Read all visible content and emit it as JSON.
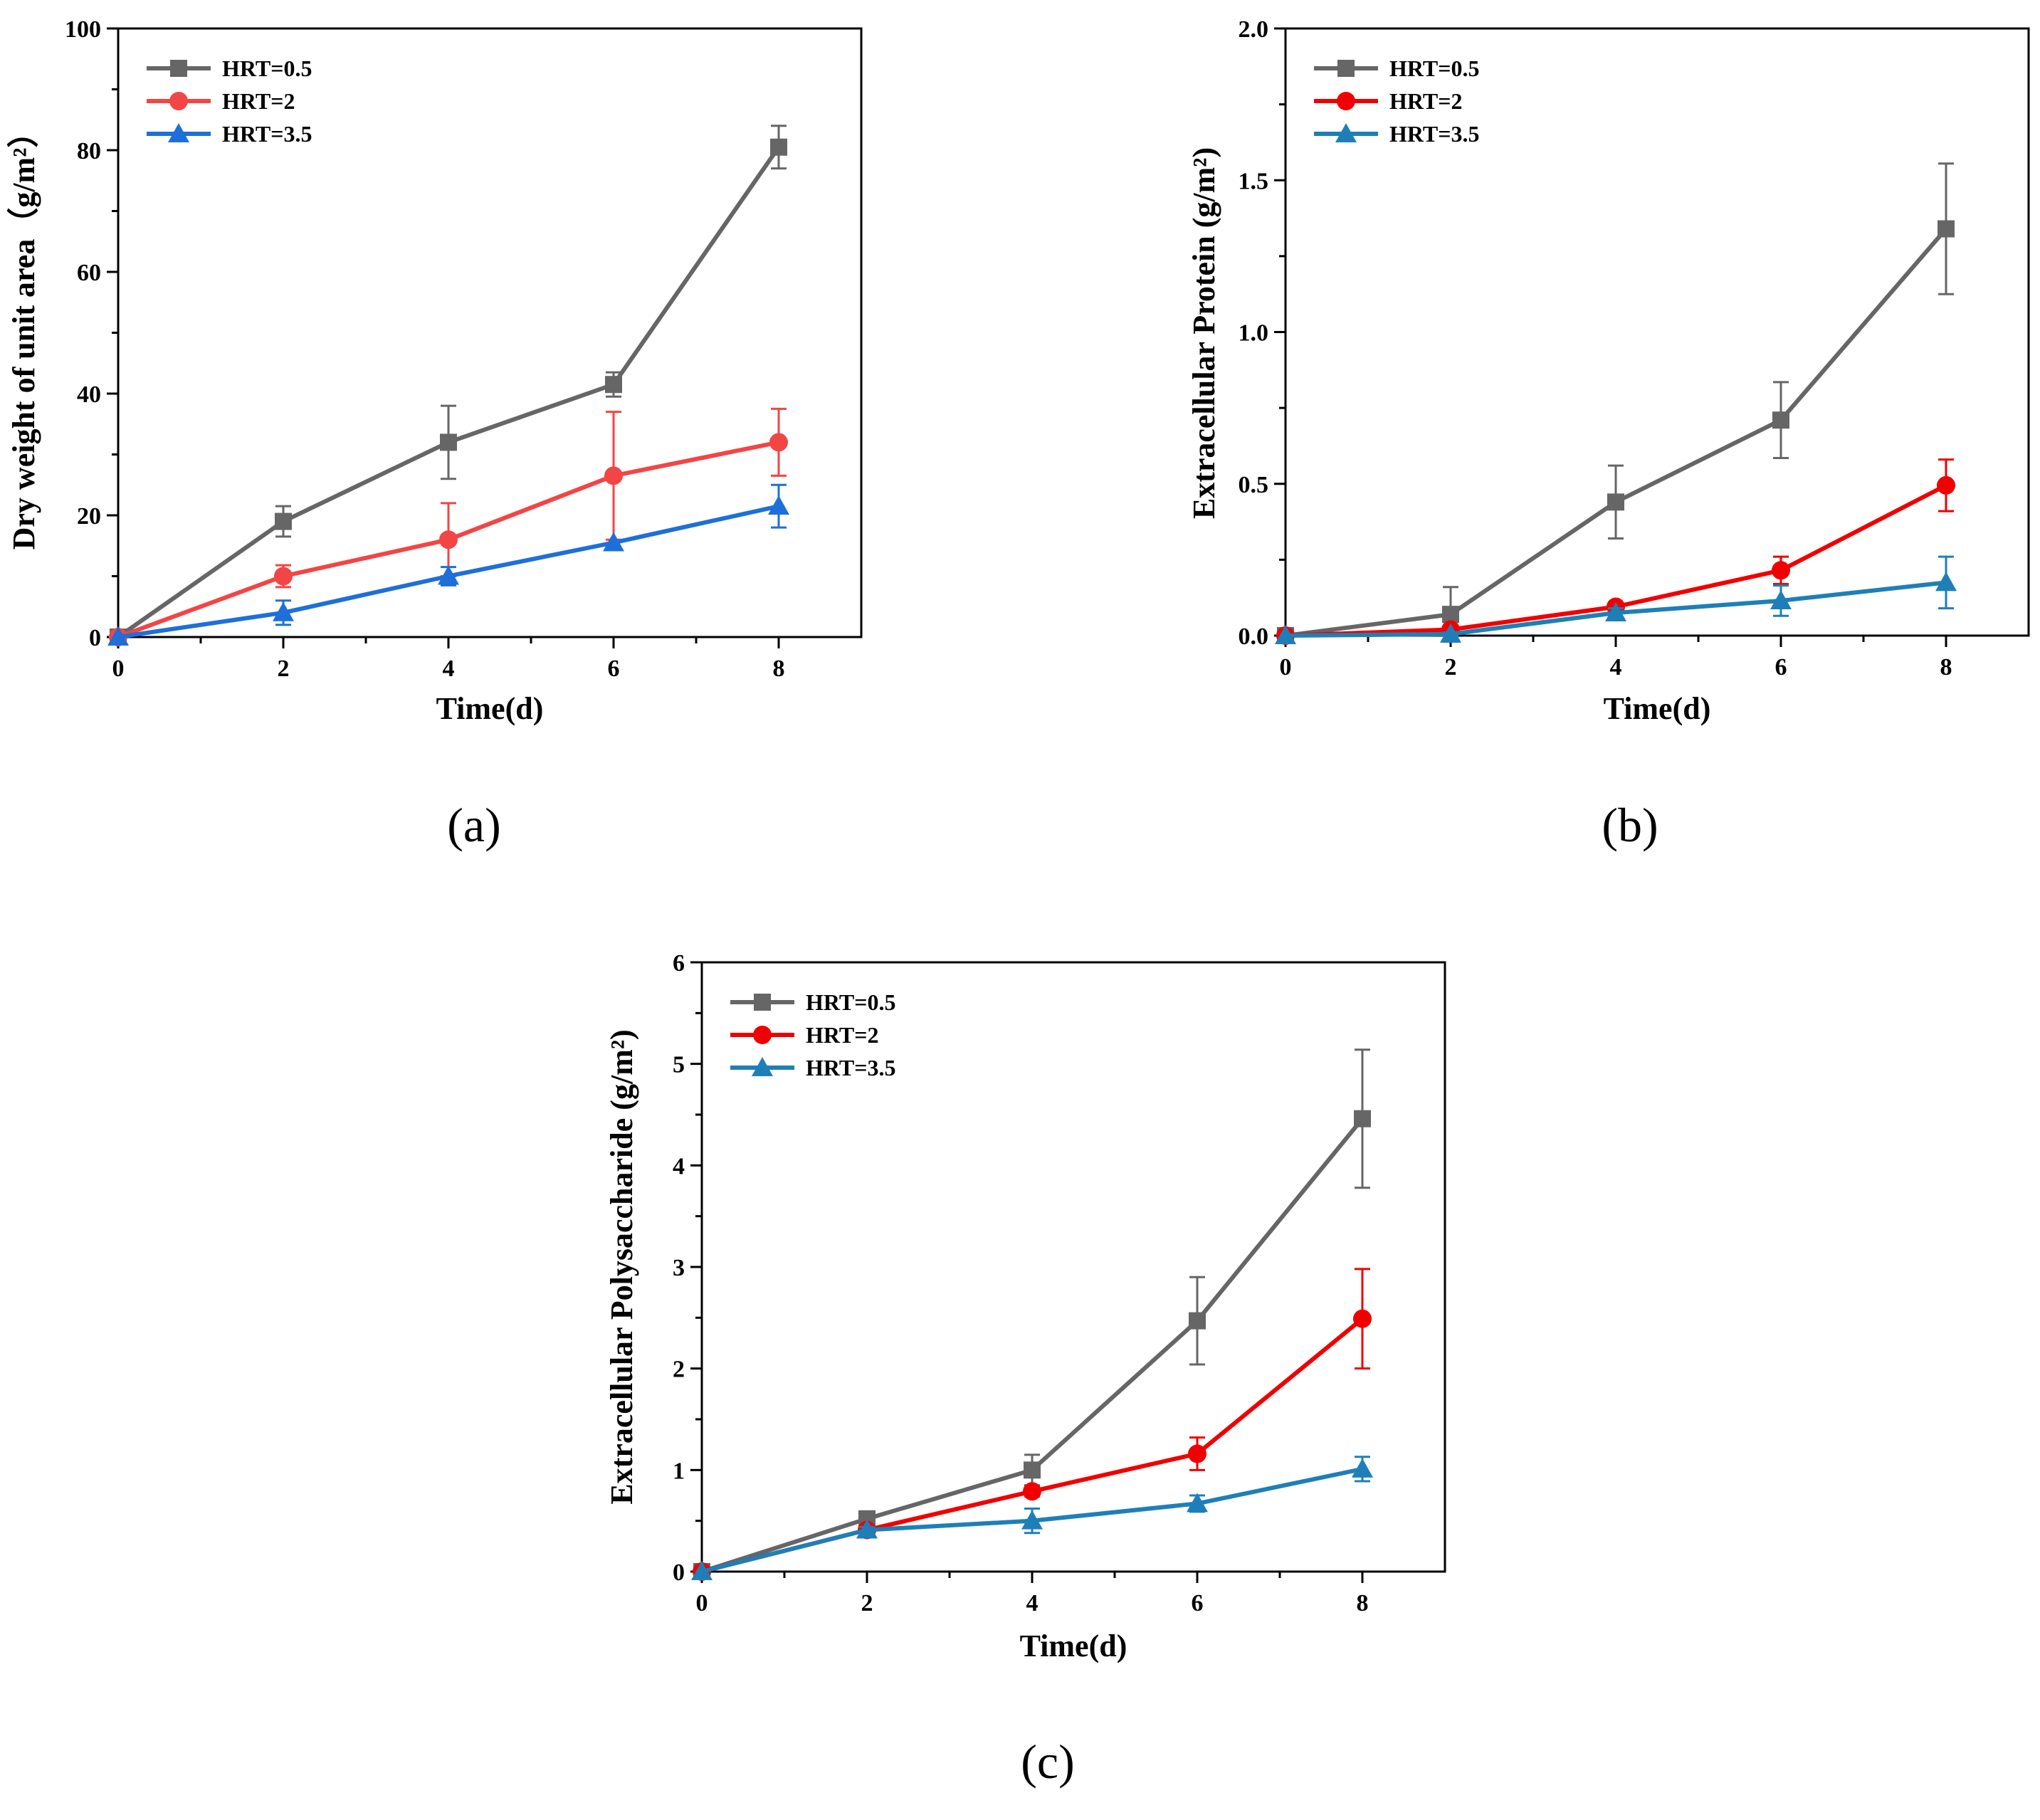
{
  "chart_data": [
    {
      "type": "line",
      "panel_label": "(a)",
      "xlabel": "Time(d)",
      "ylabel": "Dry weight of unit area（g/m²）",
      "xlim": [
        0,
        9
      ],
      "ylim": [
        0,
        100
      ],
      "xticks": [
        0,
        2,
        4,
        6,
        8
      ],
      "yticks": [
        0,
        20,
        40,
        60,
        80,
        100
      ],
      "ytick_labels": [
        "0",
        "20",
        "40",
        "60",
        "80",
        "100"
      ],
      "x": [
        0,
        2,
        4,
        6,
        8
      ],
      "legend_position": "top-left",
      "series": [
        {
          "name": "HRT=0.5",
          "marker": "square",
          "color": "#666666",
          "values": [
            0,
            19,
            32,
            41.5,
            80.5
          ],
          "err": [
            0,
            2.5,
            6,
            2,
            3.5
          ]
        },
        {
          "name": "HRT=2",
          "marker": "circle",
          "color": "#F24545",
          "values": [
            0,
            10,
            16,
            26.5,
            32
          ],
          "err": [
            0,
            1.8,
            6,
            10.5,
            5.5
          ]
        },
        {
          "name": "HRT=3.5",
          "marker": "triangle",
          "color": "#1E6FD9",
          "values": [
            0,
            4,
            10,
            15.5,
            21.5
          ],
          "err": [
            0,
            2,
            1.5,
            0,
            3.5
          ]
        }
      ]
    },
    {
      "type": "line",
      "panel_label": "(b)",
      "xlabel": "Time(d)",
      "ylabel": "Extracellular Protein (g/m²)",
      "xlim": [
        0,
        9
      ],
      "ylim": [
        0,
        2.0
      ],
      "xticks": [
        0,
        2,
        4,
        6,
        8
      ],
      "yticks": [
        0,
        0.5,
        1.0,
        1.5,
        2.0
      ],
      "ytick_labels": [
        "0.0",
        "0.5",
        "1.0",
        "1.5",
        "2.0"
      ],
      "x": [
        0,
        2,
        4,
        6,
        8
      ],
      "legend_position": "top-left",
      "series": [
        {
          "name": "HRT=0.5",
          "marker": "square",
          "color": "#666666",
          "values": [
            0,
            0.07,
            0.44,
            0.71,
            1.34
          ],
          "err": [
            0,
            0.09,
            0.12,
            0.125,
            0.215
          ]
        },
        {
          "name": "HRT=2",
          "marker": "circle",
          "color": "#F00000",
          "values": [
            0,
            0.02,
            0.095,
            0.215,
            0.495
          ],
          "err": [
            0,
            0.01,
            0.01,
            0.045,
            0.085
          ]
        },
        {
          "name": "HRT=3.5",
          "marker": "triangle",
          "color": "#1E7FB8",
          "values": [
            0,
            0.005,
            0.075,
            0.115,
            0.175
          ],
          "err": [
            0,
            0.005,
            0.015,
            0.05,
            0.085
          ]
        }
      ]
    },
    {
      "type": "line",
      "panel_label": "(c)",
      "xlabel": "Time(d)",
      "ylabel": "Extracellular Polysaccharide (g/m²)",
      "xlim": [
        0,
        9
      ],
      "ylim": [
        0,
        6
      ],
      "xticks": [
        0,
        2,
        4,
        6,
        8
      ],
      "yticks": [
        0,
        1,
        2,
        3,
        4,
        5,
        6
      ],
      "ytick_labels": [
        "0",
        "1",
        "2",
        "3",
        "4",
        "5",
        "6"
      ],
      "x": [
        0,
        2,
        4,
        6,
        8
      ],
      "legend_position": "top-left",
      "series": [
        {
          "name": "HRT=0.5",
          "marker": "square",
          "color": "#666666",
          "values": [
            0,
            0.52,
            1.0,
            2.47,
            4.46
          ],
          "err": [
            0,
            0.05,
            0.15,
            0.43,
            0.68
          ]
        },
        {
          "name": "HRT=2",
          "marker": "circle",
          "color": "#F00000",
          "values": [
            0,
            0.41,
            0.79,
            1.16,
            2.49
          ],
          "err": [
            0,
            0.03,
            0.05,
            0.16,
            0.49
          ]
        },
        {
          "name": "HRT=3.5",
          "marker": "triangle",
          "color": "#1E7FB8",
          "values": [
            0,
            0.41,
            0.5,
            0.67,
            1.01
          ],
          "err": [
            0,
            0.03,
            0.12,
            0.08,
            0.12
          ]
        }
      ]
    }
  ]
}
